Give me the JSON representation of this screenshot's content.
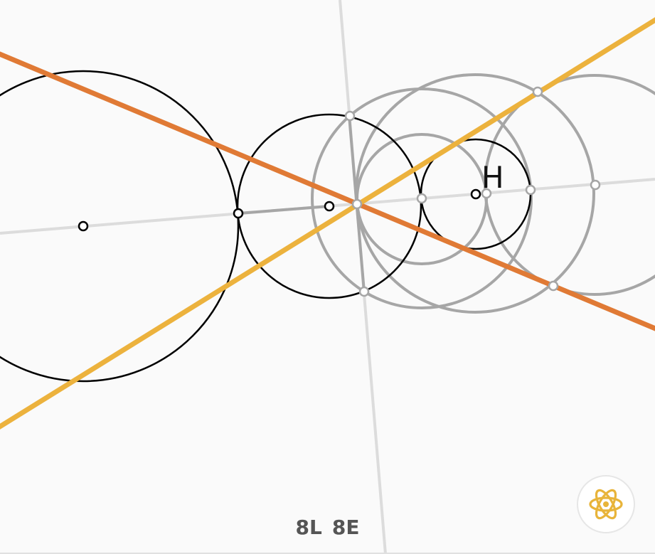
{
  "score": {
    "moves": "8L",
    "elements": "8E"
  },
  "point_label": "H",
  "hint_button": {
    "icon": "atom-icon",
    "color": "#e8b43a"
  },
  "colors": {
    "background": "#fafafa",
    "construction_gray": "#a6a6a6",
    "guide_line": "#dcdcdc",
    "orange_line": "#e07a35",
    "yellow_line": "#ecb23d",
    "black_stroke": "#000000"
  }
}
